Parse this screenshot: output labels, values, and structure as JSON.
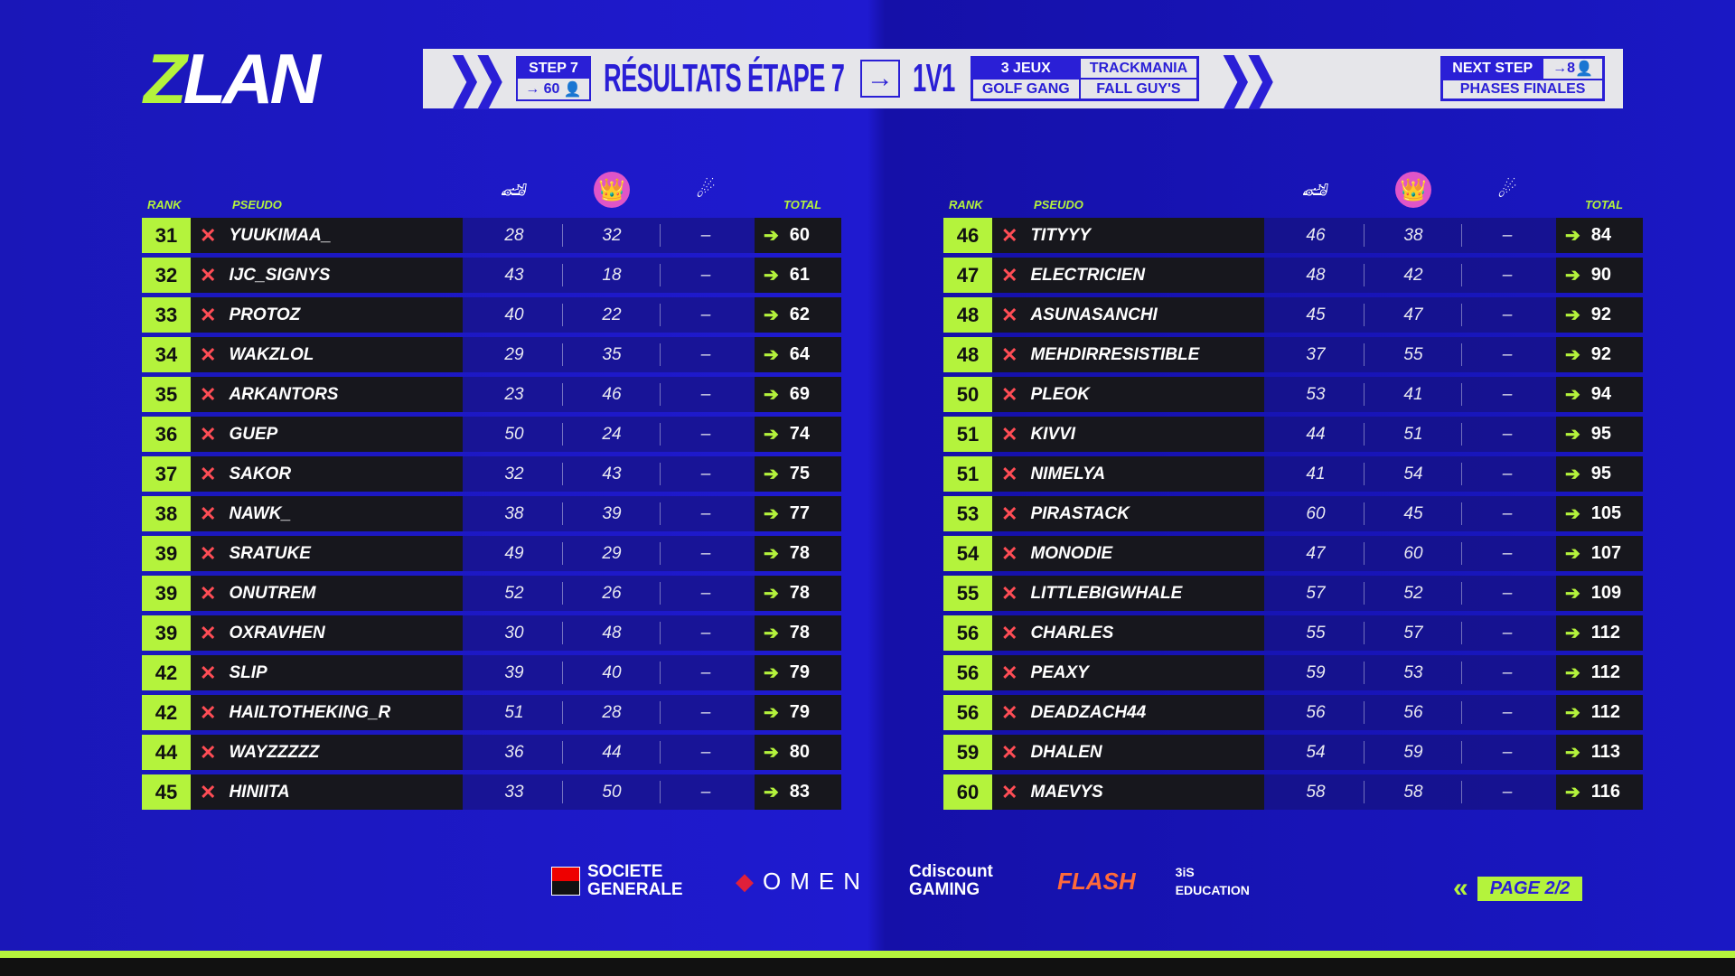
{
  "logo": "ZLAN",
  "header": {
    "step": "STEP 7",
    "players": "→ 60",
    "title": "RÉSULTATS ÉTAPE 7",
    "arrow": "→",
    "mode": "1V1",
    "games_count": "3 JEUX",
    "games": [
      "TRACKMANIA",
      "GOLF GANG",
      "FALL GUY'S"
    ],
    "next_step": "NEXT STEP",
    "next_players": "→8",
    "next_phase": "PHASES FINALES"
  },
  "columns": {
    "rank": "RANK",
    "pseudo": "PSEUDO",
    "total": "TOTAL",
    "game_icons": [
      "trackmania-car-icon",
      "fall-guys-icon",
      "golf-gang-ball-icon"
    ]
  },
  "colors": {
    "accent": "#b4f33c",
    "background": "#1a17b8",
    "eliminated": "#ff4d55"
  },
  "left_table": [
    [
      "31",
      "YUUKIMAA_",
      "28",
      "32",
      "–",
      "60"
    ],
    [
      "32",
      "IJC_SIGNYS",
      "43",
      "18",
      "–",
      "61"
    ],
    [
      "33",
      "PROTOZ",
      "40",
      "22",
      "–",
      "62"
    ],
    [
      "34",
      "WAKZLOL",
      "29",
      "35",
      "–",
      "64"
    ],
    [
      "35",
      "ARKANTORS",
      "23",
      "46",
      "–",
      "69"
    ],
    [
      "36",
      "GUEP",
      "50",
      "24",
      "–",
      "74"
    ],
    [
      "37",
      "SAKOR",
      "32",
      "43",
      "–",
      "75"
    ],
    [
      "38",
      "NAWK_",
      "38",
      "39",
      "–",
      "77"
    ],
    [
      "39",
      "SRATUKE",
      "49",
      "29",
      "–",
      "78"
    ],
    [
      "39",
      "ONUTREM",
      "52",
      "26",
      "–",
      "78"
    ],
    [
      "39",
      "OXRAVHEN",
      "30",
      "48",
      "–",
      "78"
    ],
    [
      "42",
      "SLIP",
      "39",
      "40",
      "–",
      "79"
    ],
    [
      "42",
      "HAILTOTHEKING_R",
      "51",
      "28",
      "–",
      "79"
    ],
    [
      "44",
      "WAYZZZZZ",
      "36",
      "44",
      "–",
      "80"
    ],
    [
      "45",
      "HINIITA",
      "33",
      "50",
      "–",
      "83"
    ]
  ],
  "right_table": [
    [
      "46",
      "TITYYY",
      "46",
      "38",
      "–",
      "84"
    ],
    [
      "47",
      "ELECTRICIEN",
      "48",
      "42",
      "–",
      "90"
    ],
    [
      "48",
      "ASUNASANCHI",
      "45",
      "47",
      "–",
      "92"
    ],
    [
      "48",
      "MEHDIRRESISTIBLE",
      "37",
      "55",
      "–",
      "92"
    ],
    [
      "50",
      "PLEOK",
      "53",
      "41",
      "–",
      "94"
    ],
    [
      "51",
      "KIVVI",
      "44",
      "51",
      "–",
      "95"
    ],
    [
      "51",
      "NIMELYA",
      "41",
      "54",
      "–",
      "95"
    ],
    [
      "53",
      "PIRASTACK",
      "60",
      "45",
      "–",
      "105"
    ],
    [
      "54",
      "MONODIE",
      "47",
      "60",
      "–",
      "107"
    ],
    [
      "55",
      "LITTLEBIGWHALE",
      "57",
      "52",
      "–",
      "109"
    ],
    [
      "56",
      "CHARLES",
      "55",
      "57",
      "–",
      "112"
    ],
    [
      "56",
      "PEAXY",
      "59",
      "53",
      "–",
      "112"
    ],
    [
      "56",
      "DEADZACH44",
      "56",
      "56",
      "–",
      "112"
    ],
    [
      "59",
      "DHALEN",
      "54",
      "59",
      "–",
      "113"
    ],
    [
      "60",
      "MAEVYS",
      "58",
      "58",
      "–",
      "116"
    ]
  ],
  "sponsors": [
    "SOCIETE GENERALE",
    "OMEN",
    "Cdiscount GAMING",
    "FLASH",
    "3iS EDUCATION"
  ],
  "pagination": {
    "label": "PAGE 2/2",
    "prev": "«"
  }
}
